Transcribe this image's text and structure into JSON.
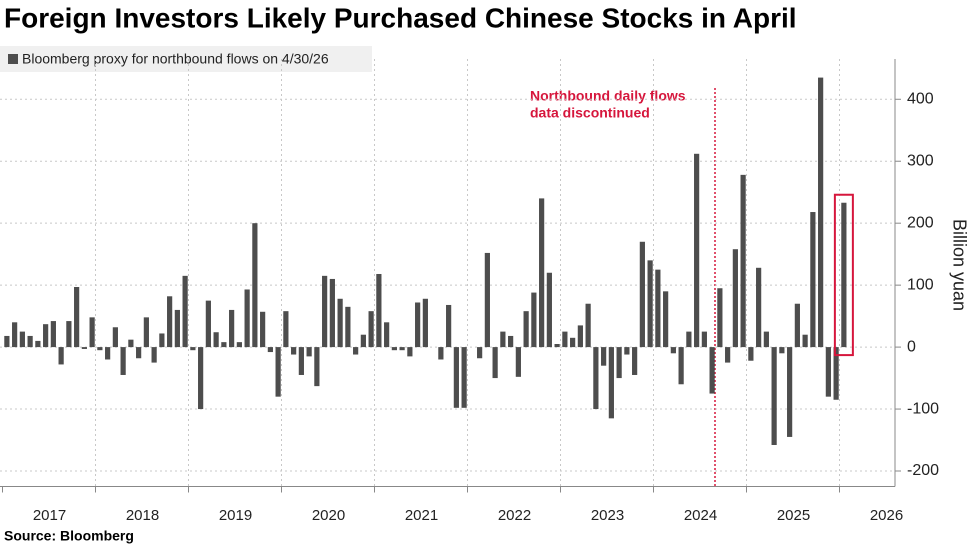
{
  "chart_data": {
    "type": "bar",
    "title": "Foreign Investors Likely Purchased Chinese Stocks in April",
    "legend": "Bloomberg proxy for northbound flows on 4/30/26",
    "y_label": "Billion yuan",
    "annotation": [
      "Northbound daily flows",
      "data discontinued"
    ],
    "source": "Source: Bloomberg",
    "color": "#4d4d4d",
    "categories": [
      "2017",
      null,
      null,
      null,
      null,
      null,
      null,
      null,
      null,
      null,
      null,
      null,
      "2018",
      null,
      null,
      null,
      null,
      null,
      null,
      null,
      null,
      null,
      null,
      null,
      "2019",
      null,
      null,
      null,
      null,
      null,
      null,
      null,
      null,
      null,
      null,
      null,
      "2020",
      null,
      null,
      null,
      null,
      null,
      null,
      null,
      null,
      null,
      null,
      null,
      "2021",
      null,
      null,
      null,
      null,
      null,
      null,
      null,
      null,
      null,
      null,
      null,
      "2022",
      null,
      null,
      null,
      null,
      null,
      null,
      null,
      null,
      null,
      null,
      null,
      "2023",
      null,
      null,
      null,
      null,
      null,
      null,
      null,
      null,
      null,
      null,
      null,
      "2024",
      null,
      null,
      null,
      null,
      null,
      null,
      null,
      null,
      null,
      null,
      null,
      "2025",
      null,
      null,
      null,
      null,
      null,
      null,
      null,
      null,
      null,
      null,
      null,
      "2026"
    ],
    "values": [
      18,
      40,
      25,
      18,
      10,
      37,
      42,
      -28,
      42,
      97,
      -3,
      48,
      -5,
      -20,
      32,
      -45,
      12,
      -18,
      48,
      -25,
      22,
      82,
      60,
      115,
      -5,
      -100,
      75,
      24,
      8,
      60,
      8,
      93,
      200,
      57,
      -8,
      -80,
      58,
      -12,
      -45,
      -15,
      -63,
      115,
      110,
      78,
      65,
      -12,
      20,
      58,
      118,
      40,
      -5,
      -5,
      -15,
      72,
      78,
      0,
      -20,
      68,
      -98,
      -98,
      0,
      -18,
      152,
      -50,
      25,
      18,
      -48,
      58,
      88,
      240,
      120,
      5,
      25,
      15,
      35,
      70,
      -100,
      -30,
      -115,
      -50,
      -12,
      -45,
      170,
      140,
      125,
      90,
      -10,
      -60,
      25,
      312,
      25,
      -75,
      95,
      -25,
      158,
      278,
      -22,
      128,
      25,
      -158,
      -10,
      -145,
      70,
      20,
      218,
      435,
      -80,
      -85,
      233
    ],
    "ylim": [
      -225,
      465
    ],
    "yticks": [
      -200,
      -100,
      0,
      100,
      200,
      300,
      400
    ],
    "grid": true
  }
}
